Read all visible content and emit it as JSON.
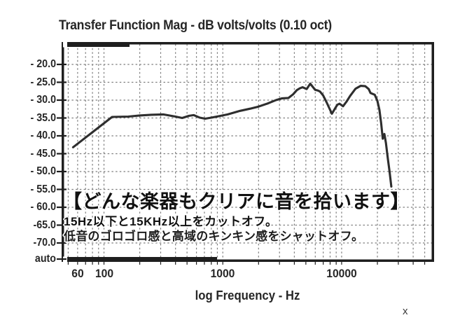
{
  "chart_data": {
    "type": "line",
    "title": "Transfer Function Mag - dB volts/volts (0.10 oct)",
    "xlabel": "log Frequency - Hz",
    "x_scale": "log",
    "x_range_hz": [
      44,
      60000
    ],
    "grid": "dashed",
    "x_tick_labels": [
      {
        "hz": 60,
        "label": "60"
      },
      {
        "hz": 100,
        "label": "100"
      },
      {
        "hz": 1000,
        "label": "1000"
      },
      {
        "hz": 10000,
        "label": "10000"
      }
    ],
    "x_minor_gridlines_hz": [
      50,
      60,
      70,
      80,
      90,
      100,
      200,
      300,
      400,
      500,
      600,
      700,
      800,
      900,
      1000,
      2000,
      3000,
      4000,
      5000,
      6000,
      7000,
      8000,
      9000,
      10000,
      20000,
      30000,
      40000,
      50000
    ],
    "y_axis_labels": [
      {
        "value": -20,
        "label": "- 20.0"
      },
      {
        "value": -25,
        "label": "- 25.0"
      },
      {
        "value": -30,
        "label": "- 30.0"
      },
      {
        "value": -35,
        "label": "- 35.0"
      },
      {
        "value": -40,
        "label": "- 40.0"
      },
      {
        "value": -45,
        "label": "- 45.0"
      },
      {
        "value": -50,
        "label": "- 50.0"
      },
      {
        "value": -55,
        "label": "- 55.0"
      },
      {
        "value": -60,
        "label": "- 60.0"
      },
      {
        "value": -65,
        "label": "-65.0"
      },
      {
        "value": -70,
        "label": "-70.0"
      },
      {
        "value": null,
        "label": "auto"
      }
    ],
    "ylim": [
      -75,
      -15
    ],
    "series": [
      {
        "name": "Transfer Function Mag",
        "points": [
          [
            55,
            -43.2
          ],
          [
            117,
            -34.7
          ],
          [
            160,
            -34.6
          ],
          [
            200,
            -34.3
          ],
          [
            250,
            -34.1
          ],
          [
            315,
            -34.0
          ],
          [
            400,
            -34.6
          ],
          [
            455,
            -35.0
          ],
          [
            520,
            -34.4
          ],
          [
            570,
            -34.2
          ],
          [
            640,
            -34.9
          ],
          [
            710,
            -35.2
          ],
          [
            800,
            -34.9
          ],
          [
            930,
            -34.5
          ],
          [
            1100,
            -34.0
          ],
          [
            1400,
            -33.0
          ],
          [
            1700,
            -32.4
          ],
          [
            2000,
            -31.8
          ],
          [
            2400,
            -30.9
          ],
          [
            2800,
            -30.0
          ],
          [
            3160,
            -29.5
          ],
          [
            3570,
            -29.4
          ],
          [
            3900,
            -28.4
          ],
          [
            4200,
            -27.2
          ],
          [
            4440,
            -26.7
          ],
          [
            4690,
            -26.4
          ],
          [
            5080,
            -26.9
          ],
          [
            5440,
            -25.4
          ],
          [
            5980,
            -27.1
          ],
          [
            6300,
            -27.3
          ],
          [
            6580,
            -27.6
          ],
          [
            7000,
            -28.7
          ],
          [
            7500,
            -30.7
          ],
          [
            8280,
            -33.8
          ],
          [
            8700,
            -32.6
          ],
          [
            9200,
            -31.3
          ],
          [
            9600,
            -31.0
          ],
          [
            10280,
            -31.7
          ],
          [
            11000,
            -30.4
          ],
          [
            11800,
            -28.8
          ],
          [
            13100,
            -26.8
          ],
          [
            14450,
            -26.0
          ],
          [
            15800,
            -26.1
          ],
          [
            16900,
            -26.9
          ],
          [
            17500,
            -28.0
          ],
          [
            19000,
            -28.5
          ],
          [
            20000,
            -30.2
          ],
          [
            20800,
            -32.7
          ],
          [
            21500,
            -36.5
          ],
          [
            22200,
            -40.8
          ],
          [
            22900,
            -39.5
          ],
          [
            23600,
            -42.0
          ],
          [
            24500,
            -46.5
          ],
          [
            25300,
            -50.0
          ],
          [
            26200,
            -54.2
          ]
        ]
      }
    ],
    "legend": "none"
  },
  "overlay": {
    "line1": "【どんな楽器もクリアに音を拾います】",
    "line2": "15Hz以下と15KHz以上をカットオフ。",
    "line3": "低音のゴロゴロ感と高域のキンキン感をシャットオフ。"
  },
  "corner_mark": "x",
  "colors": {
    "curve": "#2e2e2e",
    "grid": "#7f7f7f",
    "border": "#1e1e1e",
    "text": "#262626",
    "background": "#ffffff"
  }
}
